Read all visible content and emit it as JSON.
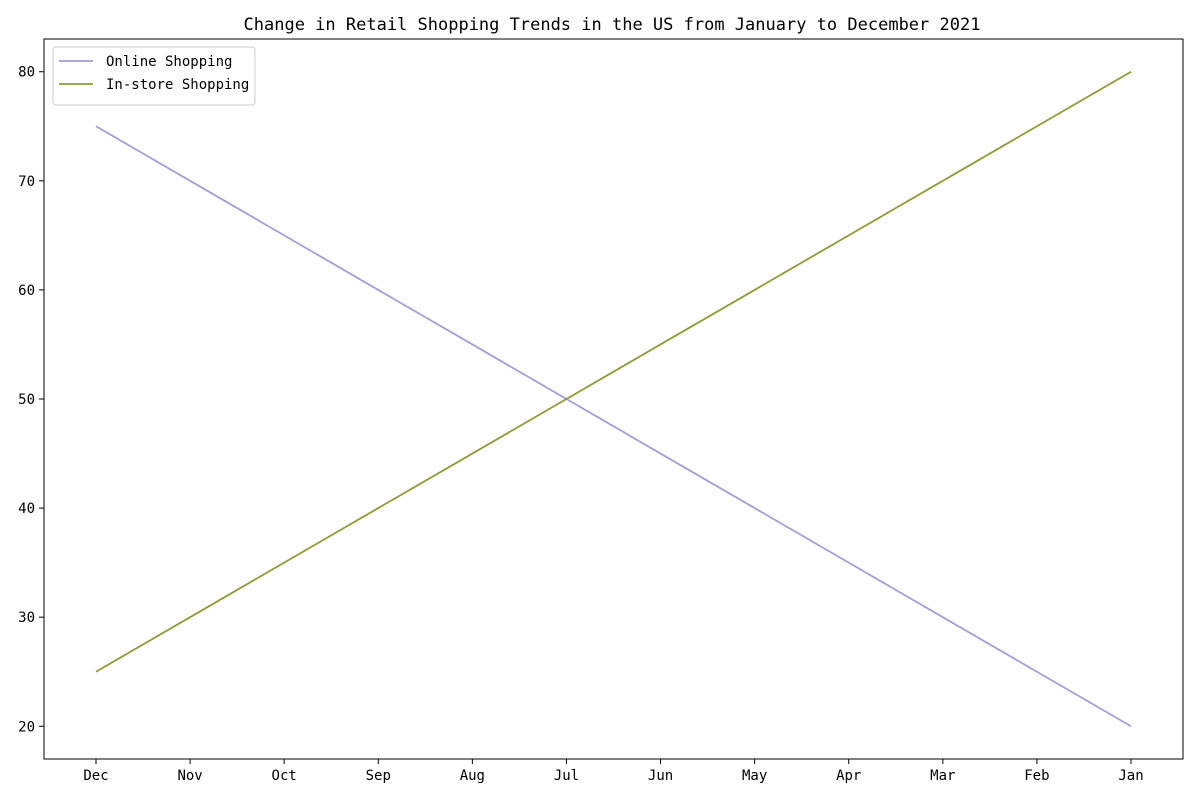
{
  "chart_data": {
    "type": "line",
    "title": "Change in Retail Shopping Trends in the US from January to December 2021",
    "xlabel": "",
    "ylabel": "",
    "categories": [
      "Dec",
      "Nov",
      "Oct",
      "Sep",
      "Aug",
      "Jul",
      "Jun",
      "May",
      "Apr",
      "Mar",
      "Feb",
      "Jan"
    ],
    "series": [
      {
        "name": "Online Shopping",
        "color": "#a39fd6",
        "values": [
          75,
          70,
          65,
          60,
          55,
          50,
          45,
          40,
          35,
          30,
          25,
          20
        ]
      },
      {
        "name": "In-store Shopping",
        "color": "#8f9a37",
        "values": [
          25,
          30,
          35,
          40,
          45,
          50,
          55,
          60,
          65,
          70,
          75,
          80
        ]
      }
    ],
    "ylim": [
      17,
      83
    ],
    "yticks": [
      20,
      30,
      40,
      50,
      60,
      70,
      80
    ],
    "grid": false,
    "legend_position": "top-left"
  }
}
